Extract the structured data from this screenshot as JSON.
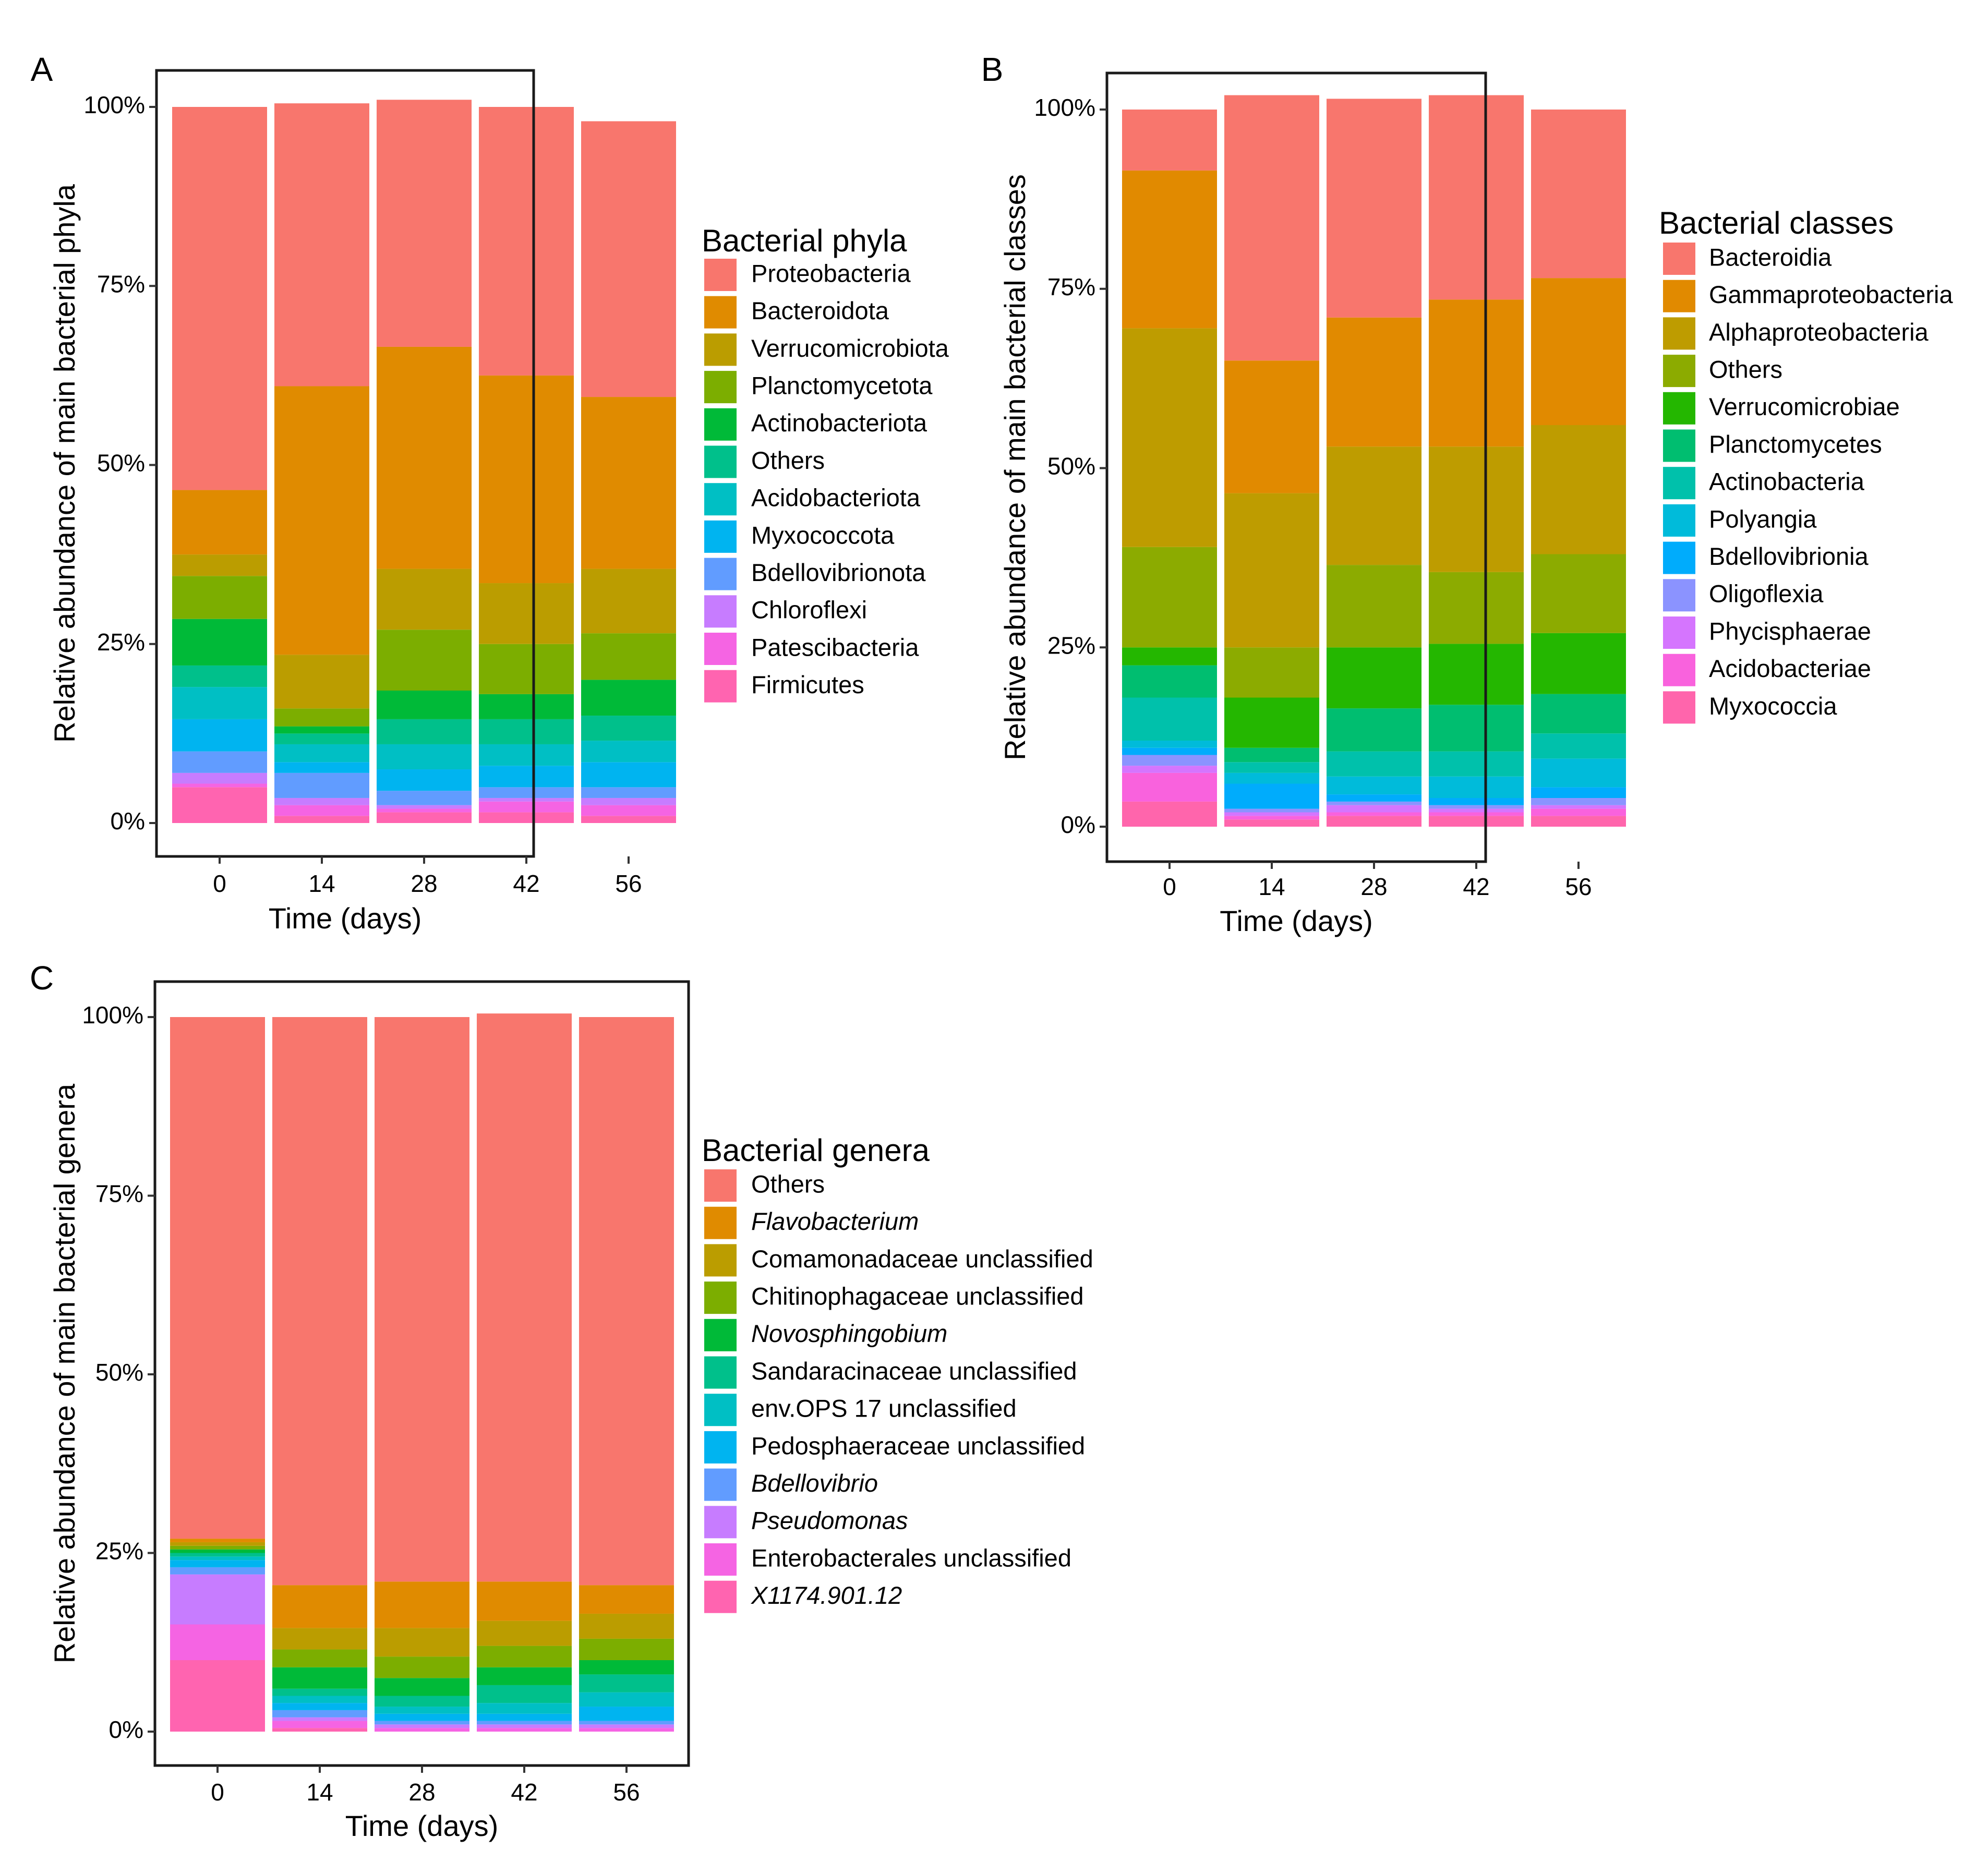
{
  "chart_data": [
    {
      "type": "bar",
      "stacked": "percent",
      "panel_label": "A",
      "xlabel": "Time (days)",
      "ylabel": "Relative abundance of main bacterial phyla",
      "ylim": [
        0,
        100
      ],
      "y_ticks": [
        "0%",
        "25%",
        "50%",
        "75%",
        "100%"
      ],
      "categories": [
        "0",
        "14",
        "28",
        "42",
        "56"
      ],
      "legend_title": "Bacterial phyla",
      "italic_legend": [],
      "series": [
        {
          "name": "Proteobacteria",
          "color": "#F8766D",
          "values": [
            53.5,
            39.5,
            34.5,
            37.5,
            38.5
          ]
        },
        {
          "name": "Bacteroidota",
          "color": "#E08B00",
          "values": [
            9.0,
            37.5,
            31.0,
            29.0,
            24.0
          ]
        },
        {
          "name": "Verrucomicrobiota",
          "color": "#BB9D00",
          "values": [
            3.0,
            7.5,
            8.5,
            8.5,
            9.0
          ]
        },
        {
          "name": "Planctomycetota",
          "color": "#7CAE00",
          "values": [
            6.0,
            2.5,
            8.5,
            7.0,
            6.5
          ]
        },
        {
          "name": "Actinobacteriota",
          "color": "#00BA38",
          "values": [
            6.5,
            1.0,
            4.0,
            3.5,
            5.0
          ]
        },
        {
          "name": "Others",
          "color": "#00C08B",
          "values": [
            3.0,
            1.5,
            3.5,
            3.5,
            3.5
          ]
        },
        {
          "name": "Acidobacteriota",
          "color": "#00BFC4",
          "values": [
            4.5,
            2.5,
            3.5,
            3.0,
            3.0
          ]
        },
        {
          "name": "Myxococcota",
          "color": "#00B4F0",
          "values": [
            4.5,
            1.5,
            3.0,
            3.0,
            3.5
          ]
        },
        {
          "name": "Bdellovibrionota",
          "color": "#619CFF",
          "values": [
            3.0,
            3.5,
            2.0,
            1.5,
            1.5
          ]
        },
        {
          "name": "Chloroflexi",
          "color": "#C77CFF",
          "values": [
            1.5,
            1.0,
            0.5,
            0.5,
            1.0
          ]
        },
        {
          "name": "Patescibacteria",
          "color": "#F564E3",
          "values": [
            0.5,
            1.5,
            0.5,
            1.5,
            1.5
          ]
        },
        {
          "name": "Firmicutes",
          "color": "#FF64B0",
          "values": [
            5.0,
            1.0,
            1.5,
            1.5,
            1.0
          ]
        }
      ]
    },
    {
      "type": "bar",
      "stacked": "percent",
      "panel_label": "B",
      "xlabel": "Time (days)",
      "ylabel": "Relative abundance of main bacterial classes",
      "ylim": [
        0,
        100
      ],
      "y_ticks": [
        "0%",
        "25%",
        "50%",
        "75%",
        "100%"
      ],
      "categories": [
        "0",
        "14",
        "28",
        "42",
        "56"
      ],
      "legend_title": "Bacterial classes",
      "italic_legend": [],
      "series": [
        {
          "name": "Bacteroidia",
          "color": "#F8766D",
          "values": [
            8.5,
            37.0,
            30.5,
            28.5,
            23.5
          ]
        },
        {
          "name": "Gammaproteobacteria",
          "color": "#E18A00",
          "values": [
            22.0,
            18.5,
            18.0,
            20.5,
            20.5
          ]
        },
        {
          "name": "Alphaproteobacteria",
          "color": "#BE9C00",
          "values": [
            30.5,
            21.5,
            16.5,
            17.5,
            18.0
          ]
        },
        {
          "name": "Others",
          "color": "#8CAB00",
          "values": [
            14.0,
            7.0,
            11.5,
            10.0,
            11.0
          ]
        },
        {
          "name": "Verrucomicrobiae",
          "color": "#24B700",
          "values": [
            2.5,
            7.0,
            8.5,
            8.5,
            8.5
          ]
        },
        {
          "name": "Planctomycetes",
          "color": "#00BE70",
          "values": [
            4.5,
            2.0,
            6.0,
            6.5,
            5.5
          ]
        },
        {
          "name": "Actinobacteria",
          "color": "#00C1AB",
          "values": [
            6.0,
            1.5,
            3.5,
            3.5,
            3.5
          ]
        },
        {
          "name": "Polyangia",
          "color": "#00BBDA",
          "values": [
            1.0,
            1.5,
            2.5,
            3.0,
            4.0
          ]
        },
        {
          "name": "Bdellovibrionia",
          "color": "#00ACFC",
          "values": [
            1.0,
            3.5,
            1.0,
            1.0,
            1.5
          ]
        },
        {
          "name": "Oligoflexia",
          "color": "#8B93FF",
          "values": [
            1.5,
            0.5,
            0.5,
            0.5,
            1.0
          ]
        },
        {
          "name": "Phycisphaerae",
          "color": "#D575FE",
          "values": [
            1.0,
            0.5,
            1.0,
            0.5,
            0.5
          ]
        },
        {
          "name": "Acidobacteriae",
          "color": "#F962DD",
          "values": [
            4.0,
            0.5,
            0.5,
            0.5,
            1.0
          ]
        },
        {
          "name": "Myxococcia",
          "color": "#FF65AC",
          "values": [
            3.5,
            1.0,
            1.5,
            1.5,
            1.5
          ]
        }
      ]
    },
    {
      "type": "bar",
      "stacked": "percent",
      "panel_label": "C",
      "xlabel": "Time (days)",
      "ylabel": "Relative abundance of main bacterial genera",
      "ylim": [
        0,
        100
      ],
      "y_ticks": [
        "0%",
        "25%",
        "50%",
        "75%",
        "100%"
      ],
      "categories": [
        "0",
        "14",
        "28",
        "42",
        "56"
      ],
      "legend_title": "Bacterial genera",
      "italic_legend": [
        "Flavobacterium",
        "Novosphingobium",
        "Bdellovibrio",
        "Pseudomonas",
        "X1174.901.12"
      ],
      "series": [
        {
          "name": "Others",
          "color": "#F8766D",
          "values": [
            73.0,
            79.5,
            79.0,
            79.5,
            79.5
          ]
        },
        {
          "name": "Flavobacterium",
          "color": "#E08B00",
          "values": [
            0.5,
            6.0,
            6.5,
            5.5,
            4.0
          ]
        },
        {
          "name": "Comamonadaceae unclassified",
          "color": "#BB9D00",
          "values": [
            0.5,
            3.0,
            4.0,
            3.5,
            3.5
          ]
        },
        {
          "name": "Chitinophagaceae unclassified",
          "color": "#7CAE00",
          "values": [
            0.5,
            2.5,
            3.0,
            3.0,
            3.0
          ]
        },
        {
          "name": "Novosphingobium",
          "color": "#00BA38",
          "values": [
            0.5,
            3.0,
            2.5,
            2.5,
            2.0
          ]
        },
        {
          "name": "Sandaracinaceae unclassified",
          "color": "#00C08B",
          "values": [
            0.5,
            1.0,
            1.5,
            2.5,
            2.5
          ]
        },
        {
          "name": "env.OPS 17 unclassified",
          "color": "#00BFC4",
          "values": [
            0.5,
            1.0,
            1.0,
            1.5,
            2.0
          ]
        },
        {
          "name": "Pedosphaeraceae unclassified",
          "color": "#00B4F0",
          "values": [
            1.0,
            1.0,
            1.0,
            1.0,
            2.0
          ]
        },
        {
          "name": "Bdellovibrio",
          "color": "#619CFF",
          "values": [
            1.0,
            1.0,
            0.5,
            0.5,
            0.5
          ]
        },
        {
          "name": "Pseudomonas",
          "color": "#C77CFF",
          "values": [
            7.0,
            0.5,
            0.5,
            0.5,
            0.5
          ]
        },
        {
          "name": "Enterobacterales unclassified",
          "color": "#F564E3",
          "values": [
            5.0,
            1.0,
            0.5,
            0.5,
            0.5
          ]
        },
        {
          "name": "X1174.901.12",
          "color": "#FF64B0",
          "values": [
            10.0,
            0.5,
            0.0,
            0.0,
            0.0
          ]
        }
      ]
    }
  ]
}
